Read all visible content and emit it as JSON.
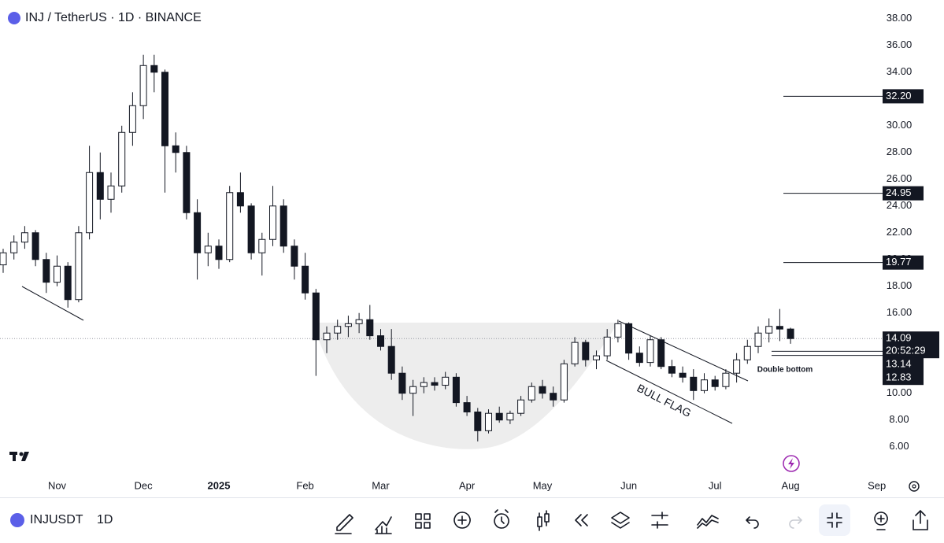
{
  "chart_data": {
    "type": "candlestick",
    "title": "INJ / TetherUS · 1D · BINANCE",
    "categories": [
      null,
      null,
      null,
      null,
      null,
      "Nov",
      null,
      null,
      null,
      null,
      null,
      null,
      null,
      "Dec",
      null,
      null,
      null,
      null,
      null,
      null,
      "2025",
      null,
      null,
      null,
      null,
      null,
      null,
      null,
      "Feb",
      null,
      null,
      null,
      null,
      null,
      null,
      "Mar",
      null,
      null,
      null,
      null,
      null,
      null,
      null,
      "Apr",
      null,
      null,
      null,
      null,
      null,
      null,
      "May",
      null,
      null,
      null,
      null,
      null,
      null,
      null,
      "Jun",
      null,
      null,
      null,
      null,
      null,
      null,
      null,
      "Jul",
      null,
      null,
      null,
      null,
      null,
      null,
      "Aug",
      null,
      null,
      null,
      null,
      null,
      null,
      null,
      "Sep"
    ],
    "open": [
      19.6,
      20.5,
      21.3,
      22.0,
      20.0,
      18.3,
      19.5,
      17.0,
      22.0,
      26.5,
      24.5,
      25.5,
      29.5,
      31.5,
      34.5,
      34.0,
      28.5,
      28.0,
      23.5,
      20.5,
      21.0,
      20.0,
      25.0,
      24.0,
      20.5,
      21.5,
      24.0,
      21.0,
      19.5,
      17.5,
      14.0,
      14.5,
      15.0,
      15.2,
      15.5,
      14.3,
      13.5,
      11.5,
      10.0,
      10.5,
      10.8,
      10.6,
      11.2,
      9.3,
      8.6,
      7.2,
      8.5,
      8.0,
      8.5,
      9.5,
      10.5,
      10.0,
      9.5,
      12.2,
      13.8,
      12.5,
      12.8,
      14.2,
      15.2,
      13.0,
      12.3,
      14.0,
      12.0,
      11.5,
      11.2,
      10.2,
      11.0,
      10.5,
      11.5,
      12.5,
      13.5,
      14.5,
      15.0,
      14.8,
      null,
      null,
      null,
      null,
      null,
      null,
      null,
      null
    ],
    "high": [
      20.8,
      21.8,
      22.5,
      22.2,
      20.5,
      20.3,
      19.8,
      22.5,
      28.5,
      28.0,
      26.5,
      30.0,
      32.5,
      35.3,
      35.3,
      34.2,
      29.5,
      28.5,
      24.5,
      22.0,
      21.5,
      25.5,
      26.5,
      24.2,
      22.0,
      25.5,
      24.5,
      21.5,
      20.5,
      17.8,
      15.0,
      15.5,
      15.8,
      16.0,
      16.6,
      14.8,
      14.8,
      12.0,
      11.0,
      11.2,
      11.2,
      11.6,
      11.5,
      9.8,
      8.9,
      8.8,
      9.0,
      8.7,
      9.8,
      10.8,
      11.0,
      10.5,
      12.5,
      14.2,
      14.0,
      13.2,
      14.8,
      15.5,
      15.3,
      13.5,
      14.3,
      14.2,
      12.5,
      12.0,
      11.8,
      11.5,
      11.3,
      11.8,
      13.0,
      14.0,
      15.0,
      15.6,
      16.3,
      14.9,
      null,
      null,
      null,
      null,
      null,
      null,
      null,
      null
    ],
    "low": [
      19.0,
      20.0,
      20.8,
      19.5,
      17.5,
      18.0,
      16.4,
      16.8,
      21.5,
      23.0,
      23.5,
      25.0,
      28.5,
      30.5,
      32.5,
      25.0,
      26.5,
      23.0,
      18.5,
      19.5,
      19.3,
      19.8,
      23.5,
      20.0,
      18.8,
      21.0,
      20.5,
      18.5,
      17.0,
      11.3,
      13.0,
      14.0,
      14.2,
      14.5,
      14.0,
      13.2,
      11.0,
      9.5,
      8.3,
      10.0,
      10.2,
      10.3,
      9.0,
      8.3,
      6.4,
      7.0,
      7.8,
      7.7,
      8.3,
      9.3,
      9.6,
      9.0,
      9.3,
      12.0,
      12.0,
      11.8,
      12.5,
      13.8,
      12.5,
      12.0,
      12.0,
      11.8,
      11.2,
      10.8,
      9.5,
      10.0,
      10.2,
      10.3,
      10.8,
      12.2,
      13.0,
      13.8,
      13.9,
      13.7,
      null,
      null,
      null,
      null,
      null,
      null,
      null,
      null
    ],
    "close": [
      20.5,
      21.3,
      22.0,
      20.0,
      18.3,
      19.5,
      17.0,
      22.0,
      26.5,
      24.5,
      25.5,
      29.5,
      31.5,
      34.5,
      34.0,
      28.5,
      28.0,
      23.5,
      20.5,
      21.0,
      20.0,
      25.0,
      24.0,
      20.5,
      21.5,
      24.0,
      21.0,
      19.5,
      17.5,
      14.0,
      14.5,
      15.0,
      15.2,
      15.5,
      14.3,
      13.5,
      11.5,
      10.0,
      10.5,
      10.8,
      10.6,
      11.2,
      9.3,
      8.6,
      7.2,
      8.5,
      8.0,
      8.5,
      9.5,
      10.5,
      10.0,
      9.5,
      12.2,
      13.8,
      12.5,
      12.8,
      14.2,
      15.2,
      13.0,
      12.3,
      14.0,
      12.0,
      11.5,
      11.2,
      10.2,
      11.0,
      10.5,
      11.5,
      12.5,
      13.5,
      14.5,
      15.0,
      14.8,
      14.09,
      null,
      null,
      null,
      null,
      null,
      null,
      null,
      null
    ],
    "ylim": [
      4.1,
      39.4
    ],
    "yticks": [
      {
        "value": 6,
        "label": "6.00"
      },
      {
        "value": 8,
        "label": "8.00"
      },
      {
        "value": 10,
        "label": "10.00"
      },
      {
        "value": 12,
        "label": "12.00"
      },
      {
        "value": 14,
        "label": "14.00"
      },
      {
        "value": 16,
        "label": "16.00"
      },
      {
        "value": 18,
        "label": "18.00"
      },
      {
        "value": 20,
        "label": "20.00"
      },
      {
        "value": 22,
        "label": "22.00"
      },
      {
        "value": 24,
        "label": "24.00"
      },
      {
        "value": 26,
        "label": "26.00"
      },
      {
        "value": 28,
        "label": "28.00"
      },
      {
        "value": 30,
        "label": "30.00"
      },
      {
        "value": 32,
        "label": "32.00"
      },
      {
        "value": 34,
        "label": "34.00"
      },
      {
        "value": 36,
        "label": "36.00"
      },
      {
        "value": 38,
        "label": "38.00"
      }
    ],
    "resistance_levels": [
      {
        "value": 32.2,
        "label": "32.20"
      },
      24.95,
      19.77
    ],
    "support_levels": [
      13.14,
      12.83
    ],
    "last_price": 14.09,
    "countdown": "20:52:29",
    "annotations": {
      "flag": "BULL FLAG",
      "support": "Double bottom"
    }
  },
  "toolbar": {
    "symbol": "INJUSDT",
    "interval": "1D"
  }
}
